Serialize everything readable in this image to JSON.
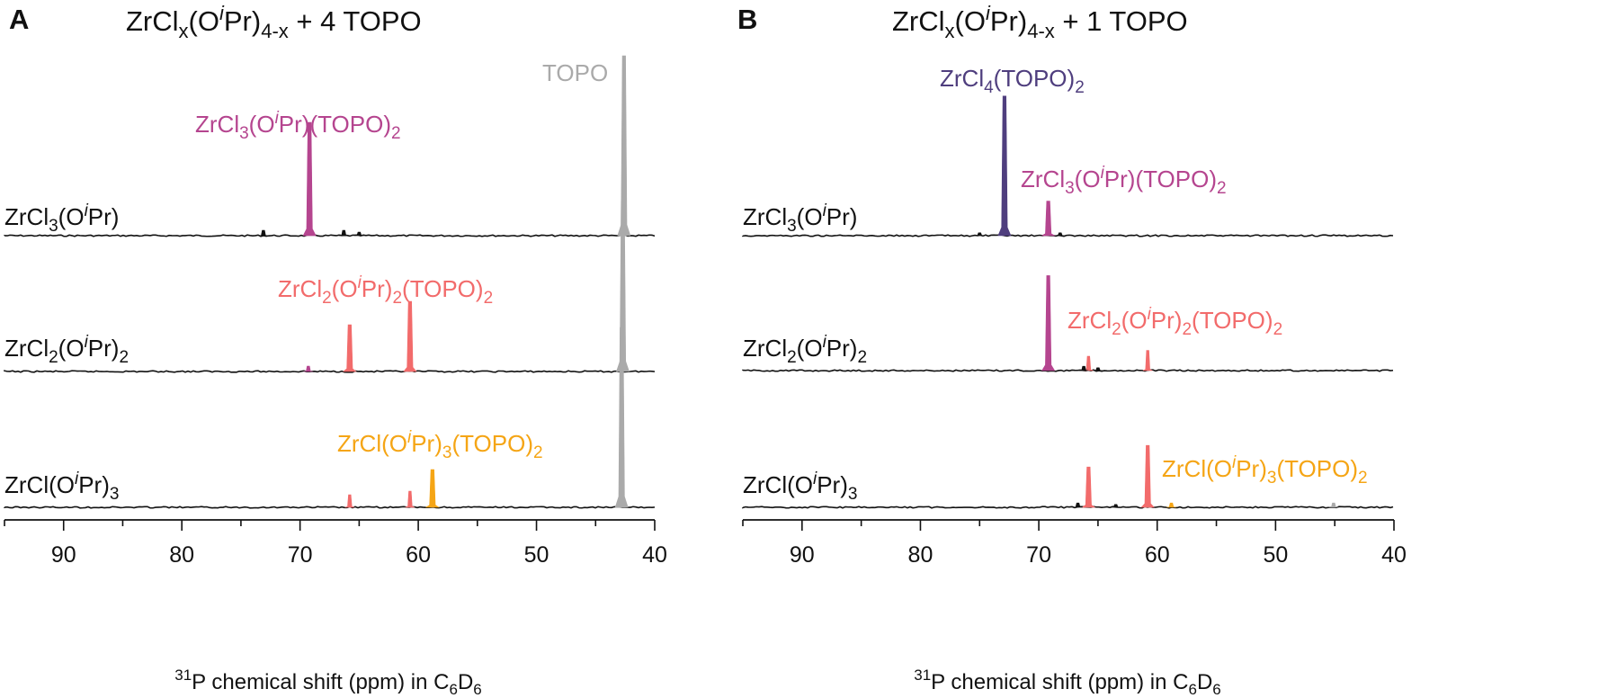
{
  "figure": {
    "panels": [
      {
        "letter": "A",
        "title": {
          "base": "ZrCl",
          "sub1": "x",
          "mid1": "(O",
          "italic": "i",
          "mid2": "Pr)",
          "sub2": "4-x",
          "tail": " + 4 TOPO"
        },
        "traces": [
          {
            "label": {
              "base": "ZrCl",
              "sub1": "3",
              "mid1": "(O",
              "italic": "i",
              "mid2": "Pr)",
              "sub2": "",
              "tail": ""
            }
          },
          {
            "label": {
              "base": "ZrCl",
              "sub1": "2",
              "mid1": "(O",
              "italic": "i",
              "mid2": "Pr)",
              "sub2": "2",
              "tail": ""
            }
          },
          {
            "label": {
              "base": "ZrCl",
              "sub1": "",
              "mid1": "(O",
              "italic": "i",
              "mid2": "Pr)",
              "sub2": "3",
              "tail": ""
            }
          }
        ],
        "annotations": [
          {
            "color": "#aaaaaa",
            "parts": [
              {
                "t": "TOPO"
              }
            ]
          },
          {
            "color": "#b5458f",
            "parts": [
              {
                "t": "ZrCl"
              },
              {
                "t": "3",
                "sub": true
              },
              {
                "t": "(O"
              },
              {
                "t": "i",
                "sup": true
              },
              {
                "t": "Pr)(TOPO)"
              },
              {
                "t": "2",
                "sub": true
              }
            ]
          },
          {
            "color": "#f26b6b",
            "parts": [
              {
                "t": "ZrCl"
              },
              {
                "t": "2",
                "sub": true
              },
              {
                "t": "(O"
              },
              {
                "t": "i",
                "sup": true
              },
              {
                "t": "Pr)"
              },
              {
                "t": "2",
                "sub": true
              },
              {
                "t": "(TOPO)"
              },
              {
                "t": "2",
                "sub": true
              }
            ]
          },
          {
            "color": "#f5a515",
            "parts": [
              {
                "t": "ZrCl(O"
              },
              {
                "t": "i",
                "sup": true
              },
              {
                "t": "Pr)"
              },
              {
                "t": "3",
                "sub": true
              },
              {
                "t": "(TOPO)"
              },
              {
                "t": "2",
                "sub": true
              }
            ]
          }
        ]
      },
      {
        "letter": "B",
        "title": {
          "base": "ZrCl",
          "sub1": "x",
          "mid1": "(O",
          "italic": "i",
          "mid2": "Pr)",
          "sub2": "4-x",
          "tail": " + 1 TOPO"
        },
        "traces": [
          {
            "label": {
              "base": "ZrCl",
              "sub1": "3",
              "mid1": "(O",
              "italic": "i",
              "mid2": "Pr)",
              "sub2": "",
              "tail": ""
            }
          },
          {
            "label": {
              "base": "ZrCl",
              "sub1": "2",
              "mid1": "(O",
              "italic": "i",
              "mid2": "Pr)",
              "sub2": "2",
              "tail": ""
            }
          },
          {
            "label": {
              "base": "ZrCl",
              "sub1": "",
              "mid1": "(O",
              "italic": "i",
              "mid2": "Pr)",
              "sub2": "3",
              "tail": ""
            }
          }
        ],
        "annotations": [
          {
            "color": "#4f3e7e",
            "parts": [
              {
                "t": "ZrCl"
              },
              {
                "t": "4",
                "sub": true
              },
              {
                "t": "(TOPO)"
              },
              {
                "t": "2",
                "sub": true
              }
            ]
          },
          {
            "color": "#b5458f",
            "parts": [
              {
                "t": "ZrCl"
              },
              {
                "t": "3",
                "sub": true
              },
              {
                "t": "(O"
              },
              {
                "t": "i",
                "sup": true
              },
              {
                "t": "Pr)(TOPO)"
              },
              {
                "t": "2",
                "sub": true
              }
            ]
          },
          {
            "color": "#f26b6b",
            "parts": [
              {
                "t": "ZrCl"
              },
              {
                "t": "2",
                "sub": true
              },
              {
                "t": "(O"
              },
              {
                "t": "i",
                "sup": true
              },
              {
                "t": "Pr)"
              },
              {
                "t": "2",
                "sub": true
              },
              {
                "t": "(TOPO)"
              },
              {
                "t": "2",
                "sub": true
              }
            ]
          },
          {
            "color": "#f5a515",
            "parts": [
              {
                "t": "ZrCl(O"
              },
              {
                "t": "i",
                "sup": true
              },
              {
                "t": "Pr)"
              },
              {
                "t": "3",
                "sub": true
              },
              {
                "t": "(TOPO)"
              },
              {
                "t": "2",
                "sub": true
              }
            ]
          }
        ]
      }
    ],
    "xaxis": {
      "tick_labels": [
        "90",
        "80",
        "70",
        "60",
        "50",
        "40"
      ],
      "label": {
        "sup": "31",
        "text": "P chemical shift (ppm) in C",
        "sub1": "6",
        "mid": "D",
        "sub2": "6"
      }
    }
  },
  "chart_data": [
    {
      "type": "line",
      "panel": "A",
      "x_reversed": true,
      "xlim": [
        95,
        40
      ],
      "x_ticks": [
        90,
        80,
        70,
        60,
        50,
        40
      ],
      "colors": {
        "baseline": "#111111",
        "TOPO": "#aaaaaa",
        "ZrCl3(OiPr)(TOPO)2": "#b5458f",
        "ZrCl2(OiPr)2(TOPO)2": "#f26b6b",
        "ZrCl(OiPr)3(TOPO)2": "#f5a515"
      },
      "series": [
        {
          "name": "ZrCl3(OiPr)",
          "peaks": [
            {
              "ppm": 69.2,
              "height": 0.63,
              "species": "ZrCl3(OiPr)(TOPO)2",
              "color": "#b5458f"
            },
            {
              "ppm": 42.6,
              "height": 1.0,
              "species": "TOPO",
              "color": "#aaaaaa"
            },
            {
              "ppm": 73.1,
              "height": 0.03,
              "color": "#111111"
            },
            {
              "ppm": 66.3,
              "height": 0.03,
              "color": "#111111"
            },
            {
              "ppm": 65.0,
              "height": 0.02,
              "color": "#111111"
            }
          ]
        },
        {
          "name": "ZrCl2(OiPr)2",
          "peaks": [
            {
              "ppm": 69.3,
              "height": 0.03,
              "species": "ZrCl3(OiPr)(TOPO)2",
              "color": "#b5458f"
            },
            {
              "ppm": 65.8,
              "height": 0.26,
              "species": "ZrCl2(OiPr)2(TOPO)2",
              "color": "#f26b6b"
            },
            {
              "ppm": 60.7,
              "height": 0.39,
              "species": "ZrCl2(OiPr)2(TOPO)2",
              "color": "#f26b6b"
            },
            {
              "ppm": 42.7,
              "height": 0.95,
              "species": "TOPO",
              "color": "#aaaaaa"
            }
          ]
        },
        {
          "name": "ZrCl(OiPr)3",
          "peaks": [
            {
              "ppm": 65.8,
              "height": 0.07,
              "species": "ZrCl2(OiPr)2(TOPO)2",
              "color": "#f26b6b"
            },
            {
              "ppm": 60.7,
              "height": 0.09,
              "species": "ZrCl2(OiPr)2(TOPO)2",
              "color": "#f26b6b"
            },
            {
              "ppm": 58.8,
              "height": 0.21,
              "species": "ZrCl(OiPr)3(TOPO)2",
              "color": "#f5a515"
            },
            {
              "ppm": 42.8,
              "height": 1.0,
              "species": "TOPO",
              "color": "#aaaaaa"
            }
          ]
        }
      ]
    },
    {
      "type": "line",
      "panel": "B",
      "x_reversed": true,
      "xlim": [
        95,
        40
      ],
      "x_ticks": [
        90,
        80,
        70,
        60,
        50,
        40
      ],
      "colors": {
        "baseline": "#111111",
        "ZrCl4(TOPO)2": "#4f3e7e",
        "ZrCl3(OiPr)(TOPO)2": "#b5458f",
        "ZrCl2(OiPr)2(TOPO)2": "#f26b6b",
        "ZrCl(OiPr)3(TOPO)2": "#f5a515",
        "TOPO": "#aaaaaa"
      },
      "series": [
        {
          "name": "ZrCl3(OiPr)",
          "peaks": [
            {
              "ppm": 72.9,
              "height": 0.97,
              "species": "ZrCl4(TOPO)2",
              "color": "#4f3e7e"
            },
            {
              "ppm": 69.2,
              "height": 0.24,
              "species": "ZrCl3(OiPr)(TOPO)2",
              "color": "#b5458f"
            },
            {
              "ppm": 68.2,
              "height": 0.02,
              "color": "#111111"
            },
            {
              "ppm": 75.0,
              "height": 0.02,
              "color": "#111111"
            }
          ]
        },
        {
          "name": "ZrCl2(OiPr)2",
          "peaks": [
            {
              "ppm": 69.2,
              "height": 0.66,
              "species": "ZrCl3(OiPr)(TOPO)2",
              "color": "#b5458f"
            },
            {
              "ppm": 65.8,
              "height": 0.1,
              "species": "ZrCl2(OiPr)2(TOPO)2",
              "color": "#f26b6b"
            },
            {
              "ppm": 60.8,
              "height": 0.14,
              "species": "ZrCl2(OiPr)2(TOPO)2",
              "color": "#f26b6b"
            },
            {
              "ppm": 66.2,
              "height": 0.03,
              "color": "#111111"
            },
            {
              "ppm": 65.0,
              "height": 0.02,
              "color": "#111111"
            }
          ]
        },
        {
          "name": "ZrCl(OiPr)3",
          "peaks": [
            {
              "ppm": 65.8,
              "height": 0.28,
              "species": "ZrCl2(OiPr)2(TOPO)2",
              "color": "#f26b6b"
            },
            {
              "ppm": 60.8,
              "height": 0.43,
              "species": "ZrCl2(OiPr)2(TOPO)2",
              "color": "#f26b6b"
            },
            {
              "ppm": 58.8,
              "height": 0.03,
              "species": "ZrCl(OiPr)3(TOPO)2",
              "color": "#f5a515"
            },
            {
              "ppm": 45.1,
              "height": 0.03,
              "species": "TOPO",
              "color": "#aaaaaa"
            },
            {
              "ppm": 66.7,
              "height": 0.03,
              "color": "#111111"
            },
            {
              "ppm": 63.5,
              "height": 0.02,
              "color": "#111111"
            }
          ]
        }
      ]
    }
  ]
}
